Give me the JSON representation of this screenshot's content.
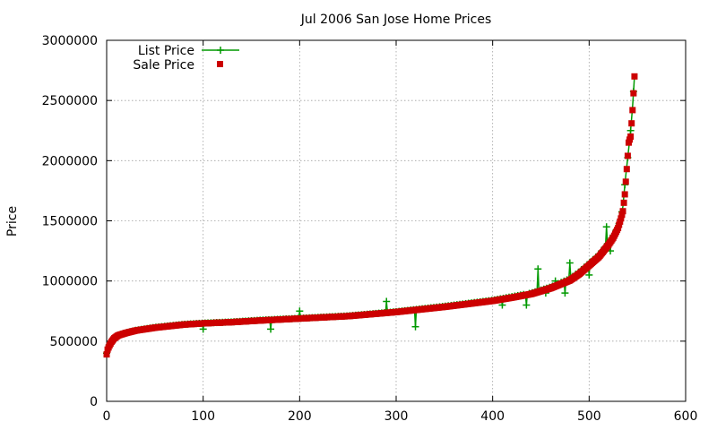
{
  "chart_data": {
    "type": "scatter",
    "title": "Jul 2006 San Jose Home Prices",
    "xlabel": "",
    "ylabel": "Price",
    "xlim": [
      0,
      600
    ],
    "ylim": [
      0,
      3000000
    ],
    "x_ticks": [
      0,
      100,
      200,
      300,
      400,
      500,
      600
    ],
    "y_ticks": [
      0,
      500000,
      1000000,
      1500000,
      2000000,
      2500000,
      3000000
    ],
    "grid": true,
    "legend_position": "top-left",
    "series": [
      {
        "name": "List Price",
        "color": "#009900",
        "marker": "plus",
        "line": true,
        "anchor_x": [
          0,
          1,
          3,
          5,
          8,
          12,
          20,
          30,
          50,
          80,
          100,
          130,
          160,
          200,
          250,
          300,
          350,
          400,
          420,
          440,
          460,
          480,
          490,
          500,
          510,
          520,
          525,
          530,
          533,
          535,
          537,
          539,
          541,
          543,
          545,
          547
        ],
        "anchor_y": [
          400000,
          440000,
          470000,
          500000,
          530000,
          550000,
          570000,
          590000,
          615000,
          640000,
          650000,
          660000,
          675000,
          690000,
          710000,
          745000,
          790000,
          840000,
          870000,
          900000,
          950000,
          1020000,
          1080000,
          1150000,
          1220000,
          1320000,
          1380000,
          1450000,
          1530000,
          1620000,
          1800000,
          1950000,
          2100000,
          2250000,
          2450000,
          2700000
        ],
        "outliers": [
          [
            447,
            1100000
          ],
          [
            480,
            1150000
          ],
          [
            465,
            1000000
          ],
          [
            500,
            1050000
          ],
          [
            518,
            1450000
          ],
          [
            522,
            1250000
          ],
          [
            435,
            800000
          ],
          [
            455,
            900000
          ],
          [
            475,
            900000
          ],
          [
            290,
            830000
          ],
          [
            320,
            620000
          ],
          [
            200,
            750000
          ],
          [
            170,
            600000
          ],
          [
            100,
            600000
          ],
          [
            410,
            800000
          ]
        ]
      },
      {
        "name": "Sale Price",
        "color": "#cc0000",
        "marker": "square",
        "line": false,
        "anchor_x": [
          0,
          1,
          3,
          5,
          8,
          12,
          20,
          30,
          50,
          80,
          100,
          130,
          160,
          200,
          250,
          300,
          350,
          400,
          420,
          440,
          460,
          480,
          490,
          500,
          510,
          520,
          525,
          530,
          533,
          535,
          537,
          539,
          541,
          543,
          545,
          547
        ],
        "anchor_y": [
          390000,
          430000,
          465000,
          495000,
          525000,
          548000,
          568000,
          588000,
          612000,
          638000,
          648000,
          658000,
          672000,
          688000,
          708000,
          742000,
          785000,
          835000,
          862000,
          892000,
          940000,
          1005000,
          1060000,
          1130000,
          1200000,
          1300000,
          1360000,
          1440000,
          1520000,
          1580000,
          1720000,
          1930000,
          2150000,
          2200000,
          2420000,
          2700000
        ]
      }
    ]
  }
}
